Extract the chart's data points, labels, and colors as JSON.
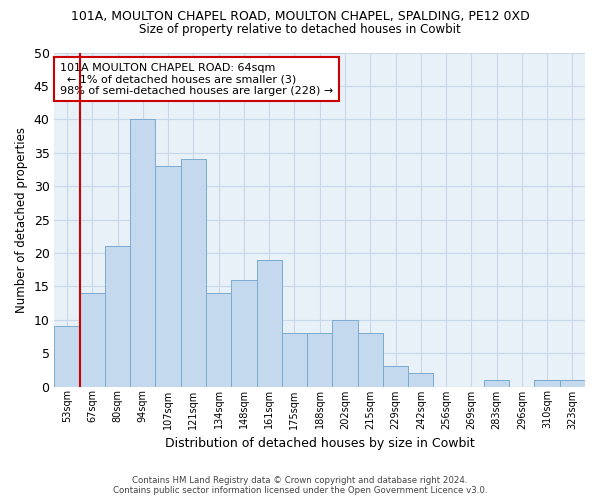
{
  "title": "101A, MOULTON CHAPEL ROAD, MOULTON CHAPEL, SPALDING, PE12 0XD",
  "subtitle": "Size of property relative to detached houses in Cowbit",
  "xlabel": "Distribution of detached houses by size in Cowbit",
  "ylabel": "Number of detached properties",
  "bar_color": "#c5d9ee",
  "bar_edge_color": "#7aabcf",
  "categories": [
    "53sqm",
    "67sqm",
    "80sqm",
    "94sqm",
    "107sqm",
    "121sqm",
    "134sqm",
    "148sqm",
    "161sqm",
    "175sqm",
    "188sqm",
    "202sqm",
    "215sqm",
    "229sqm",
    "242sqm",
    "256sqm",
    "269sqm",
    "283sqm",
    "296sqm",
    "310sqm",
    "323sqm"
  ],
  "values": [
    9,
    14,
    21,
    40,
    33,
    34,
    14,
    16,
    19,
    8,
    8,
    10,
    8,
    3,
    2,
    0,
    0,
    1,
    0,
    1,
    1
  ],
  "ylim": [
    0,
    50
  ],
  "yticks": [
    0,
    5,
    10,
    15,
    20,
    25,
    30,
    35,
    40,
    45,
    50
  ],
  "marker_color": "#cc0000",
  "annotation_title": "101A MOULTON CHAPEL ROAD: 64sqm",
  "annotation_line1": "← 1% of detached houses are smaller (3)",
  "annotation_line2": "98% of semi-detached houses are larger (228) →",
  "annotation_box_color": "#ffffff",
  "annotation_box_edge_color": "#cc0000",
  "footer_line1": "Contains HM Land Registry data © Crown copyright and database right 2024.",
  "footer_line2": "Contains public sector information licensed under the Open Government Licence v3.0.",
  "grid_color": "#c8d8e8",
  "background_color": "#e8f0f8"
}
